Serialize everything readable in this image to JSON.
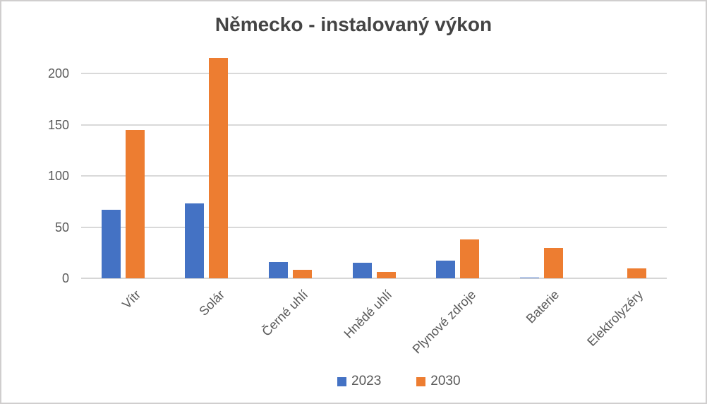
{
  "chart_data": {
    "type": "bar",
    "title": "Německo - instalovaný výkon",
    "categories": [
      "Vítr",
      "Solár",
      "Černé uhlí",
      "Hnědé uhlí",
      "Plynové zdroje",
      "Baterie",
      "Elektrolyzéry"
    ],
    "series": [
      {
        "name": "2023",
        "color": "#4472C4",
        "values": [
          67,
          73,
          16,
          15,
          17,
          1,
          0
        ]
      },
      {
        "name": "2030",
        "color": "#ED7D31",
        "values": [
          145,
          215,
          8,
          6,
          38,
          30,
          10
        ]
      }
    ],
    "xlabel": "",
    "ylabel": "",
    "yticks": [
      0,
      50,
      100,
      150,
      200
    ],
    "ylim": [
      0,
      220
    ],
    "grid": true,
    "legend_position": "bottom",
    "colors": {
      "grid": "#D9D9D9",
      "axis_line": "#D6D6D6",
      "tick_text": "#595959",
      "title_text": "#444444"
    }
  }
}
